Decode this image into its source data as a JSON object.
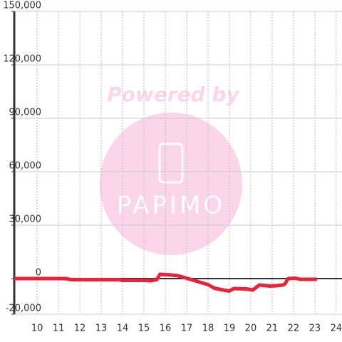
{
  "chart_data": {
    "type": "line",
    "watermark": {
      "line1": "Powered by",
      "line2": "PAPIMO"
    },
    "x": [
      8.93,
      11.33,
      11.6,
      13.8,
      14,
      15,
      15.3,
      15.6,
      15.75,
      16.3,
      16.6,
      17,
      17.5,
      18,
      18.3,
      18.7,
      19,
      19.2,
      19.8,
      20.1,
      20.4,
      20.9,
      21.2,
      21.5,
      21.6,
      21.75,
      22.1,
      22.3,
      23.1
    ],
    "series": [
      {
        "color": "#e8233a",
        "values": [
          0,
          0,
          -600,
          -600,
          -1000,
          -1000,
          -1200,
          -600,
          2400,
          2000,
          1600,
          200,
          -1600,
          -3400,
          -5400,
          -6400,
          -7000,
          -5600,
          -5800,
          -6400,
          -3600,
          -4200,
          -4000,
          -3600,
          -3000,
          0,
          200,
          -400,
          -400
        ]
      }
    ],
    "xlim": [
      8.93,
      24.27
    ],
    "xticks": [
      10,
      11,
      12,
      13,
      14,
      15,
      16,
      17,
      18,
      19,
      20,
      21,
      22,
      23,
      24
    ],
    "ylim": [
      -20000,
      150000
    ],
    "yticks": [
      {
        "value": -20000,
        "label": "-20,000"
      },
      0,
      {
        "value": 30000,
        "label": "30,000"
      },
      {
        "value": 60000,
        "label": "60,000"
      },
      {
        "value": 90000,
        "label": "90,000"
      },
      {
        "value": 120000,
        "label": "120,000"
      },
      {
        "value": 150000,
        "label": "150,000"
      }
    ],
    "grid": true
  }
}
